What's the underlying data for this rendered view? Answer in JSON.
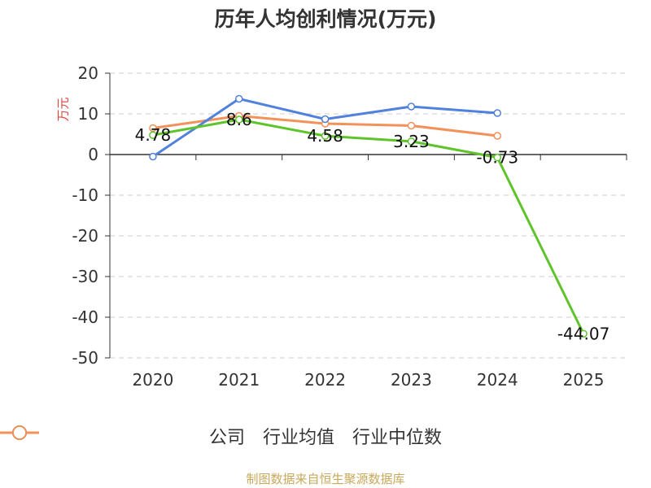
{
  "chart_data": {
    "type": "line",
    "title": "历年人均创利情况(万元)",
    "ylabel": "万元",
    "xlabel": "",
    "categories": [
      "2020",
      "2021",
      "2022",
      "2023",
      "2024",
      "2025"
    ],
    "ylim": [
      -50,
      20
    ],
    "yticks": [
      20,
      10,
      0,
      -10,
      -20,
      -30,
      -40,
      -50
    ],
    "grid": true,
    "legend_position": "bottom",
    "series": [
      {
        "name": "公司",
        "color": "#5fc42b",
        "values": [
          4.78,
          8.6,
          4.58,
          3.23,
          -0.73,
          -44.07
        ],
        "labels": [
          "4.78",
          "8.6",
          "4.58",
          "3.23",
          "-0.73",
          "-44.07"
        ]
      },
      {
        "name": "行业均值",
        "color": "#4f81dd",
        "values": [
          -0.5,
          13.7,
          8.7,
          11.8,
          10.2,
          null
        ]
      },
      {
        "name": "行业中位数",
        "color": "#f3915b",
        "values": [
          6.5,
          9.5,
          7.6,
          7.1,
          4.6,
          null
        ]
      }
    ]
  },
  "source_text": "制图数据来自恒生聚源数据库"
}
